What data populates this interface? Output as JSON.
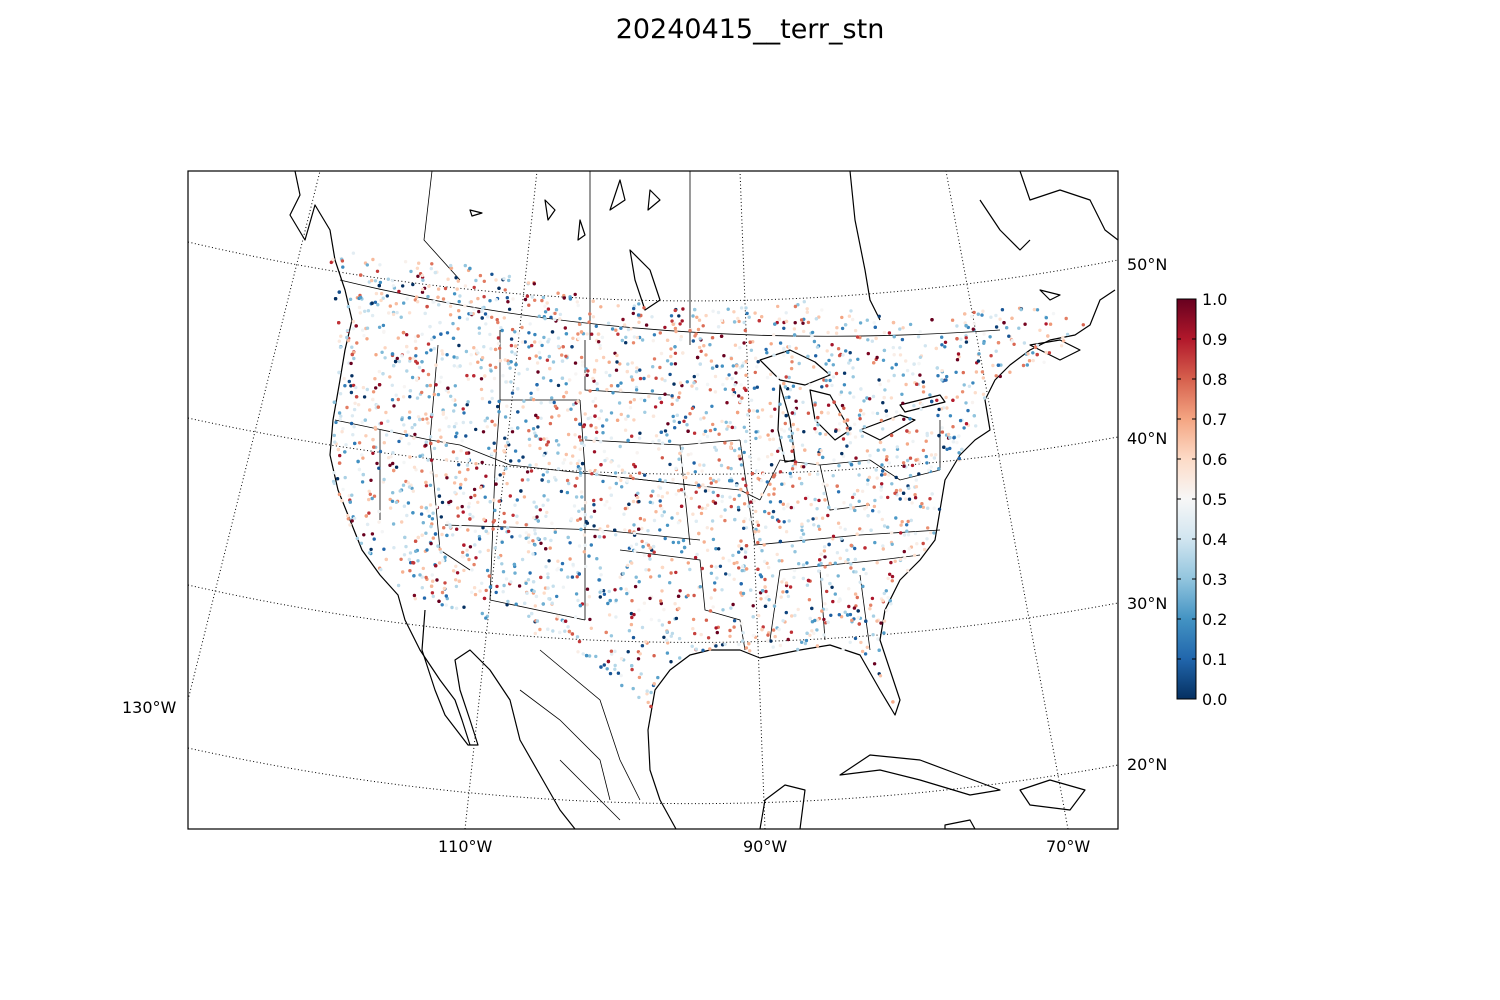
{
  "title": "20240415__terr_stn",
  "map": {
    "lat_labels": [
      "50°N",
      "40°N",
      "30°N",
      "20°N"
    ],
    "lon_labels": [
      "130°W",
      "110°W",
      "90°W",
      "70°W"
    ]
  },
  "colorbar": {
    "ticks": [
      "0.0",
      "0.1",
      "0.2",
      "0.3",
      "0.4",
      "0.5",
      "0.6",
      "0.7",
      "0.8",
      "0.9",
      "1.0"
    ],
    "range": [
      0.0,
      1.0
    ],
    "colors": [
      "#053061",
      "#2166ac",
      "#4393c3",
      "#92c5de",
      "#d1e5f0",
      "#f7f7f7",
      "#fddbc7",
      "#f4a582",
      "#d6604d",
      "#b2182b",
      "#67001f"
    ]
  }
}
